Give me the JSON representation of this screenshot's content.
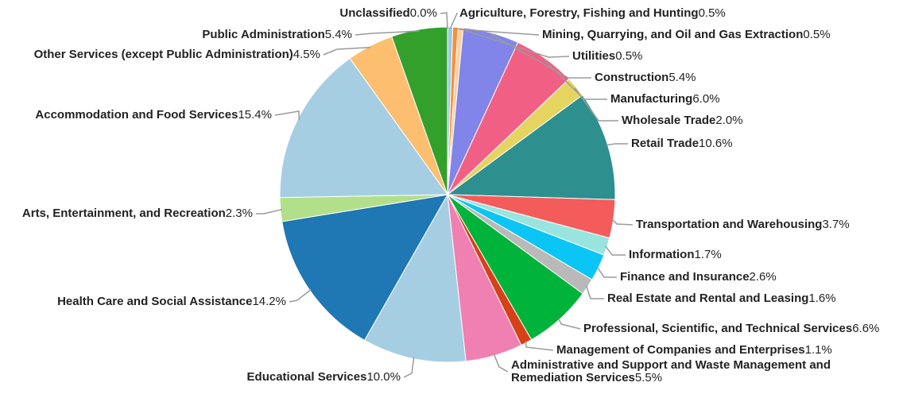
{
  "chart_data": {
    "type": "pie",
    "title": "",
    "slices": [
      {
        "label": "Agriculture, Forestry, Fishing and Hunting",
        "value": 0.5,
        "display": "0.5%",
        "color": "#9ecae1"
      },
      {
        "label": "Mining, Quarrying, and Oil and Gas Extraction",
        "value": 0.5,
        "display": "0.5%",
        "color": "#fd8d3c"
      },
      {
        "label": "Utilities",
        "value": 0.5,
        "display": "0.5%",
        "color": "#fdd0a2"
      },
      {
        "label": "Construction",
        "value": 5.4,
        "display": "5.4%",
        "color": "#8184e8"
      },
      {
        "label": "Manufacturing",
        "value": 6.0,
        "display": "6.0%",
        "color": "#f25f85"
      },
      {
        "label": "Wholesale Trade",
        "value": 2.0,
        "display": "2.0%",
        "color": "#e5d45f"
      },
      {
        "label": "Retail Trade",
        "value": 10.6,
        "display": "10.6%",
        "color": "#2e8f8f"
      },
      {
        "label": "Transportation and Warehousing",
        "value": 3.7,
        "display": "3.7%",
        "color": "#f45b5b"
      },
      {
        "label": "Information",
        "value": 1.7,
        "display": "1.7%",
        "color": "#99e4de"
      },
      {
        "label": "Finance and Insurance",
        "value": 2.6,
        "display": "2.6%",
        "color": "#0bc5f5"
      },
      {
        "label": "Real Estate and Rental and Leasing",
        "value": 1.6,
        "display": "1.6%",
        "color": "#b9b9b9"
      },
      {
        "label": "Professional, Scientific, and Technical Services",
        "value": 6.6,
        "display": "6.6%",
        "color": "#00b33b"
      },
      {
        "label": "Management of Companies and Enterprises",
        "value": 1.1,
        "display": "1.1%",
        "color": "#d64118"
      },
      {
        "label": "Administrative and Support and Waste Management and Remediation Services",
        "value": 5.5,
        "display": "5.5%",
        "color": "#f07fb2"
      },
      {
        "label": "Educational Services",
        "value": 10.0,
        "display": "10.0%",
        "color": "#a6cee3"
      },
      {
        "label": "Health Care and Social Assistance",
        "value": 14.2,
        "display": "14.2%",
        "color": "#1f77b4"
      },
      {
        "label": "Arts, Entertainment, and Recreation",
        "value": 2.3,
        "display": "2.3%",
        "color": "#b2df8a"
      },
      {
        "label": "Accommodation and Food Services",
        "value": 15.4,
        "display": "15.4%",
        "color": "#a6cee3"
      },
      {
        "label": "Other Services (except Public Administration)",
        "value": 4.5,
        "display": "4.5%",
        "color": "#fdbf6f"
      },
      {
        "label": "Public Administration",
        "value": 5.4,
        "display": "5.4%",
        "color": "#33a02c"
      },
      {
        "label": "Unclassified",
        "value": 0.0,
        "display": "0.0%",
        "color": "#cccccc"
      }
    ]
  }
}
